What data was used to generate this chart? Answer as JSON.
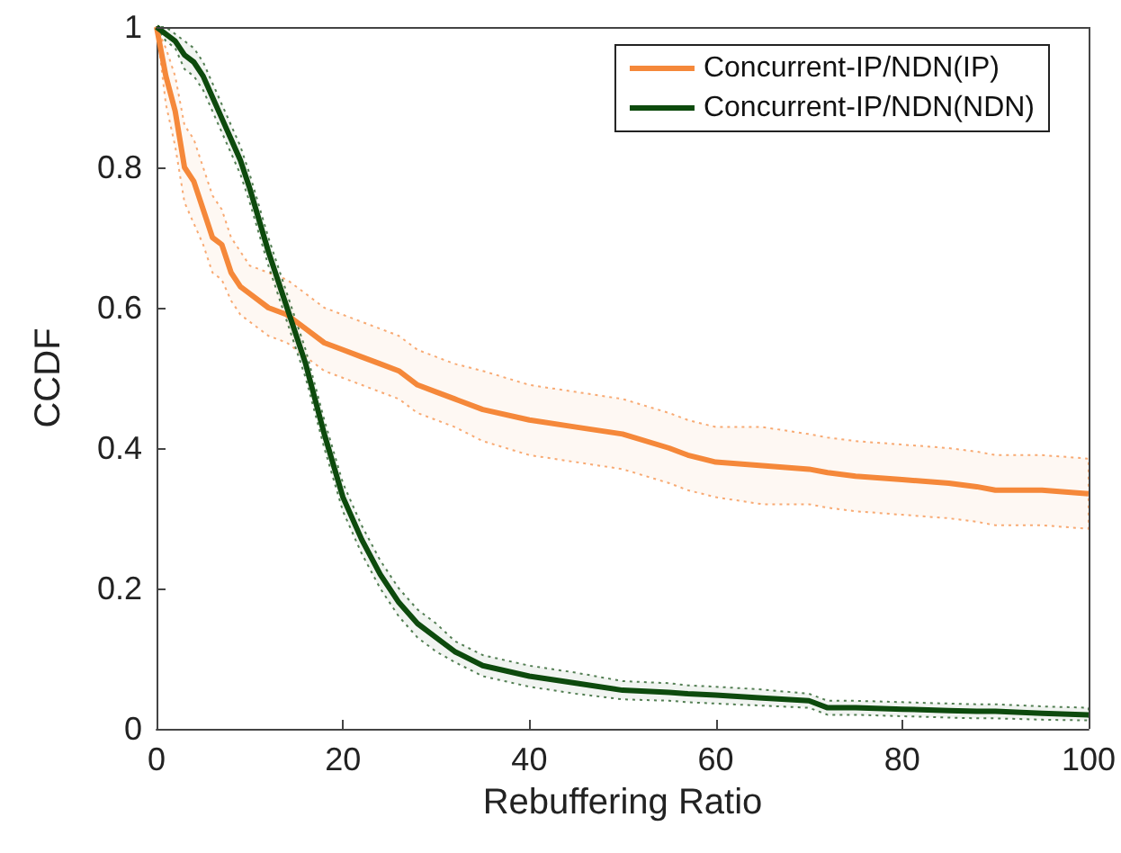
{
  "chart_data": {
    "type": "line",
    "xlabel": "Rebuffering Ratio",
    "ylabel": "CCDF",
    "x": [
      0,
      1,
      2,
      3,
      4,
      5,
      6,
      7,
      8,
      9,
      10,
      12,
      14,
      16,
      18,
      20,
      22,
      24,
      26,
      28,
      30,
      32,
      35,
      40,
      45,
      50,
      55,
      57,
      60,
      65,
      70,
      72,
      75,
      80,
      85,
      88,
      90,
      95,
      100
    ],
    "series": [
      {
        "name": "Concurrent-IP/NDN(IP)",
        "color": "#f5883a",
        "values": [
          1,
          0.93,
          0.88,
          0.8,
          0.78,
          0.74,
          0.7,
          0.69,
          0.65,
          0.63,
          0.62,
          0.6,
          0.59,
          0.57,
          0.55,
          0.54,
          0.53,
          0.52,
          0.51,
          0.49,
          0.48,
          0.47,
          0.455,
          0.44,
          0.43,
          0.42,
          0.4,
          0.39,
          0.38,
          0.375,
          0.37,
          0.365,
          0.36,
          0.355,
          0.35,
          0.345,
          0.34,
          0.34,
          0.335
        ],
        "lower": [
          1,
          0.89,
          0.83,
          0.75,
          0.72,
          0.69,
          0.65,
          0.64,
          0.61,
          0.59,
          0.58,
          0.56,
          0.55,
          0.53,
          0.51,
          0.5,
          0.49,
          0.48,
          0.47,
          0.45,
          0.44,
          0.43,
          0.41,
          0.39,
          0.38,
          0.37,
          0.35,
          0.34,
          0.33,
          0.32,
          0.32,
          0.315,
          0.31,
          0.305,
          0.3,
          0.295,
          0.29,
          0.29,
          0.285
        ],
        "upper": [
          1,
          0.97,
          0.93,
          0.86,
          0.84,
          0.8,
          0.76,
          0.74,
          0.7,
          0.68,
          0.66,
          0.65,
          0.64,
          0.62,
          0.6,
          0.59,
          0.58,
          0.57,
          0.56,
          0.54,
          0.53,
          0.52,
          0.51,
          0.49,
          0.48,
          0.47,
          0.45,
          0.44,
          0.43,
          0.43,
          0.42,
          0.415,
          0.41,
          0.405,
          0.4,
          0.395,
          0.39,
          0.39,
          0.385
        ]
      },
      {
        "name": "Concurrent-IP/NDN(NDN)",
        "color": "#0d4a0d",
        "values": [
          1,
          0.99,
          0.98,
          0.96,
          0.95,
          0.93,
          0.9,
          0.87,
          0.84,
          0.81,
          0.77,
          0.68,
          0.6,
          0.52,
          0.42,
          0.33,
          0.27,
          0.22,
          0.18,
          0.15,
          0.13,
          0.11,
          0.09,
          0.075,
          0.065,
          0.055,
          0.052,
          0.05,
          0.048,
          0.044,
          0.04,
          0.03,
          0.03,
          0.028,
          0.026,
          0.025,
          0.025,
          0.022,
          0.02
        ],
        "lower": [
          1,
          0.98,
          0.97,
          0.94,
          0.93,
          0.91,
          0.88,
          0.85,
          0.82,
          0.79,
          0.75,
          0.66,
          0.58,
          0.5,
          0.4,
          0.31,
          0.25,
          0.2,
          0.16,
          0.13,
          0.11,
          0.095,
          0.075,
          0.06,
          0.05,
          0.042,
          0.04,
          0.038,
          0.036,
          0.033,
          0.03,
          0.02,
          0.02,
          0.018,
          0.016,
          0.015,
          0.015,
          0.013,
          0.012
        ],
        "upper": [
          1,
          1,
          0.99,
          0.98,
          0.97,
          0.95,
          0.92,
          0.89,
          0.86,
          0.83,
          0.79,
          0.7,
          0.62,
          0.54,
          0.44,
          0.35,
          0.29,
          0.24,
          0.2,
          0.17,
          0.15,
          0.125,
          0.105,
          0.09,
          0.08,
          0.068,
          0.065,
          0.062,
          0.06,
          0.056,
          0.05,
          0.04,
          0.04,
          0.038,
          0.036,
          0.035,
          0.035,
          0.032,
          0.03
        ]
      }
    ],
    "xlim": [
      0,
      100
    ],
    "xticks": [
      0,
      20,
      40,
      60,
      80,
      100
    ],
    "ylim": [
      0,
      1
    ],
    "yticks": [
      0,
      0.2,
      0.4,
      0.6,
      0.8,
      1
    ],
    "grid": false,
    "legend": "top right",
    "marker": "none",
    "line_style": "solid"
  }
}
